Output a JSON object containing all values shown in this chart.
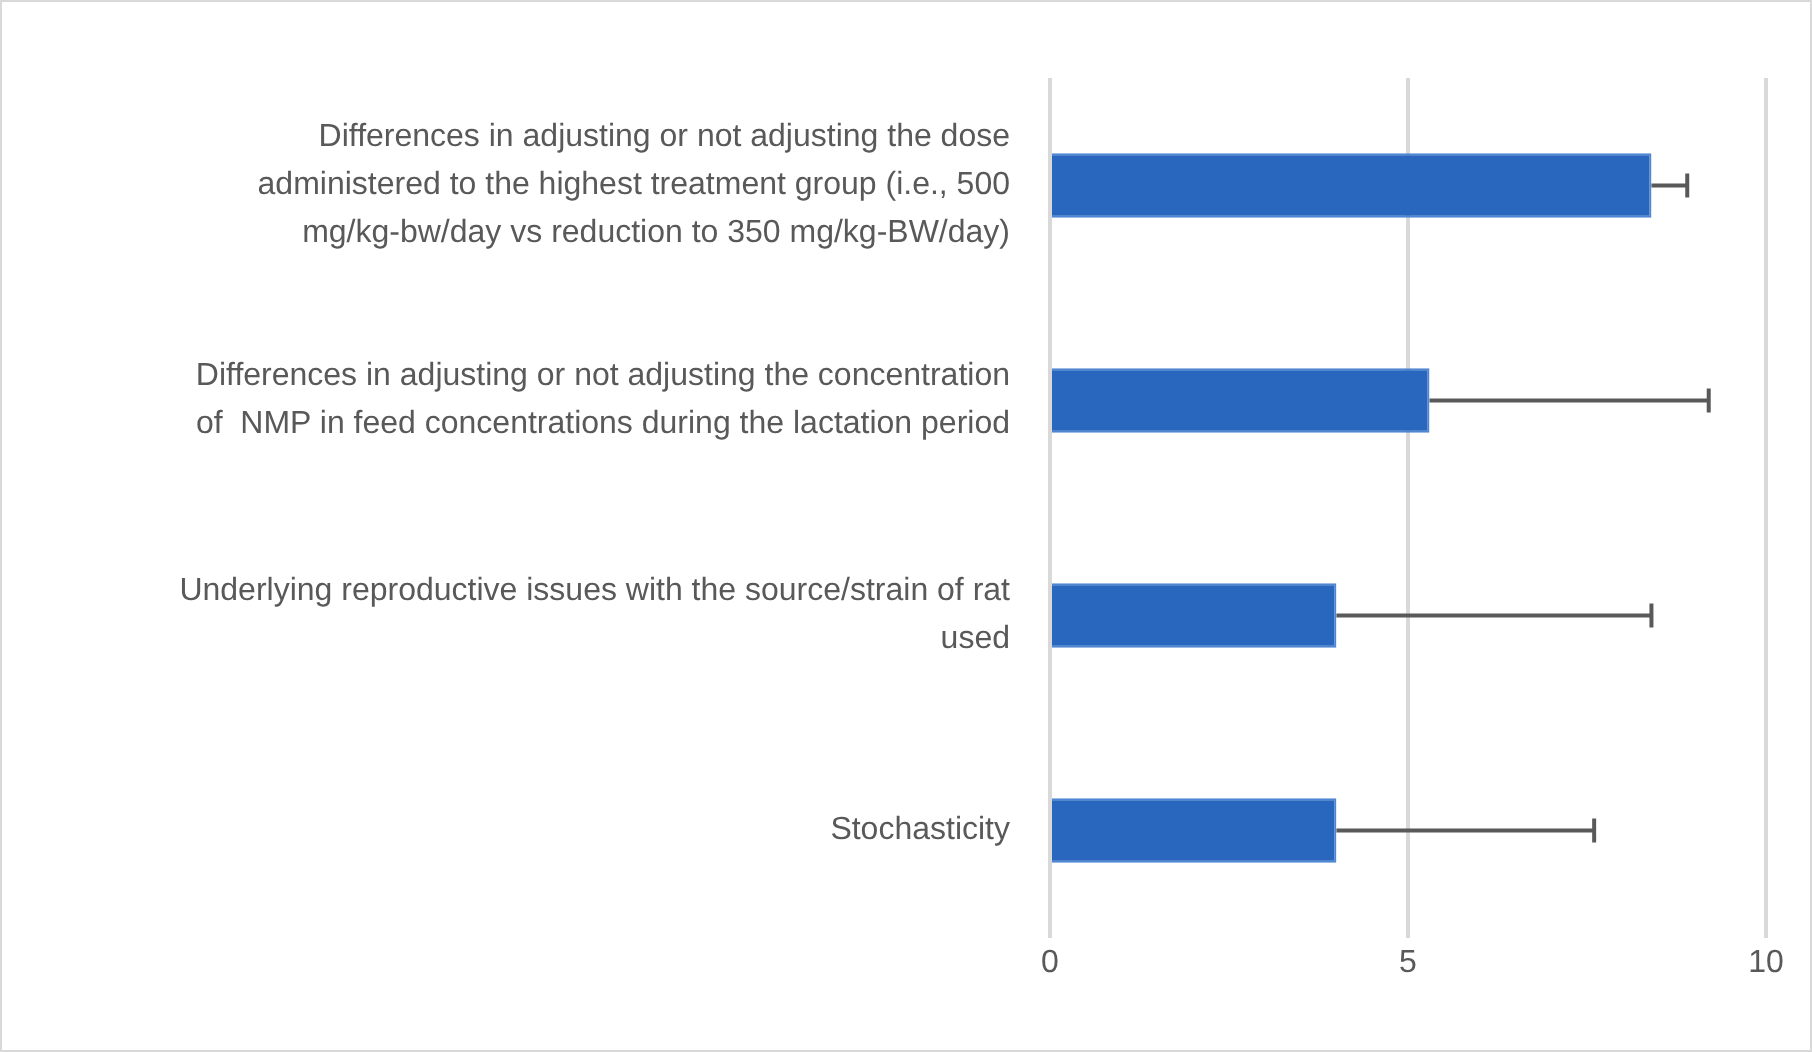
{
  "chart_data": {
    "type": "bar",
    "orientation": "horizontal",
    "categories": [
      "Differences in adjusting or not adjusting the dose administered to the highest treatment group (i.e., 500 mg/kg-bw/day vs reduction to 350 mg/kg-BW/day)",
      "Differences in adjusting or not adjusting the concentration of  NMP in feed concentrations during the lactation period",
      "Underlying reproductive issues with the source/strain of rat used",
      "Stochasticity"
    ],
    "values": [
      8.4,
      5.3,
      4.0,
      4.0
    ],
    "errors": [
      [
        8.4,
        8.9
      ],
      [
        5.3,
        9.2
      ],
      [
        4.0,
        8.4
      ],
      [
        4.0,
        7.6
      ]
    ],
    "color": "#2966bd",
    "xlim": [
      0,
      10
    ],
    "xticks": [
      0,
      5,
      10
    ],
    "grid": "x",
    "legend": false
  }
}
